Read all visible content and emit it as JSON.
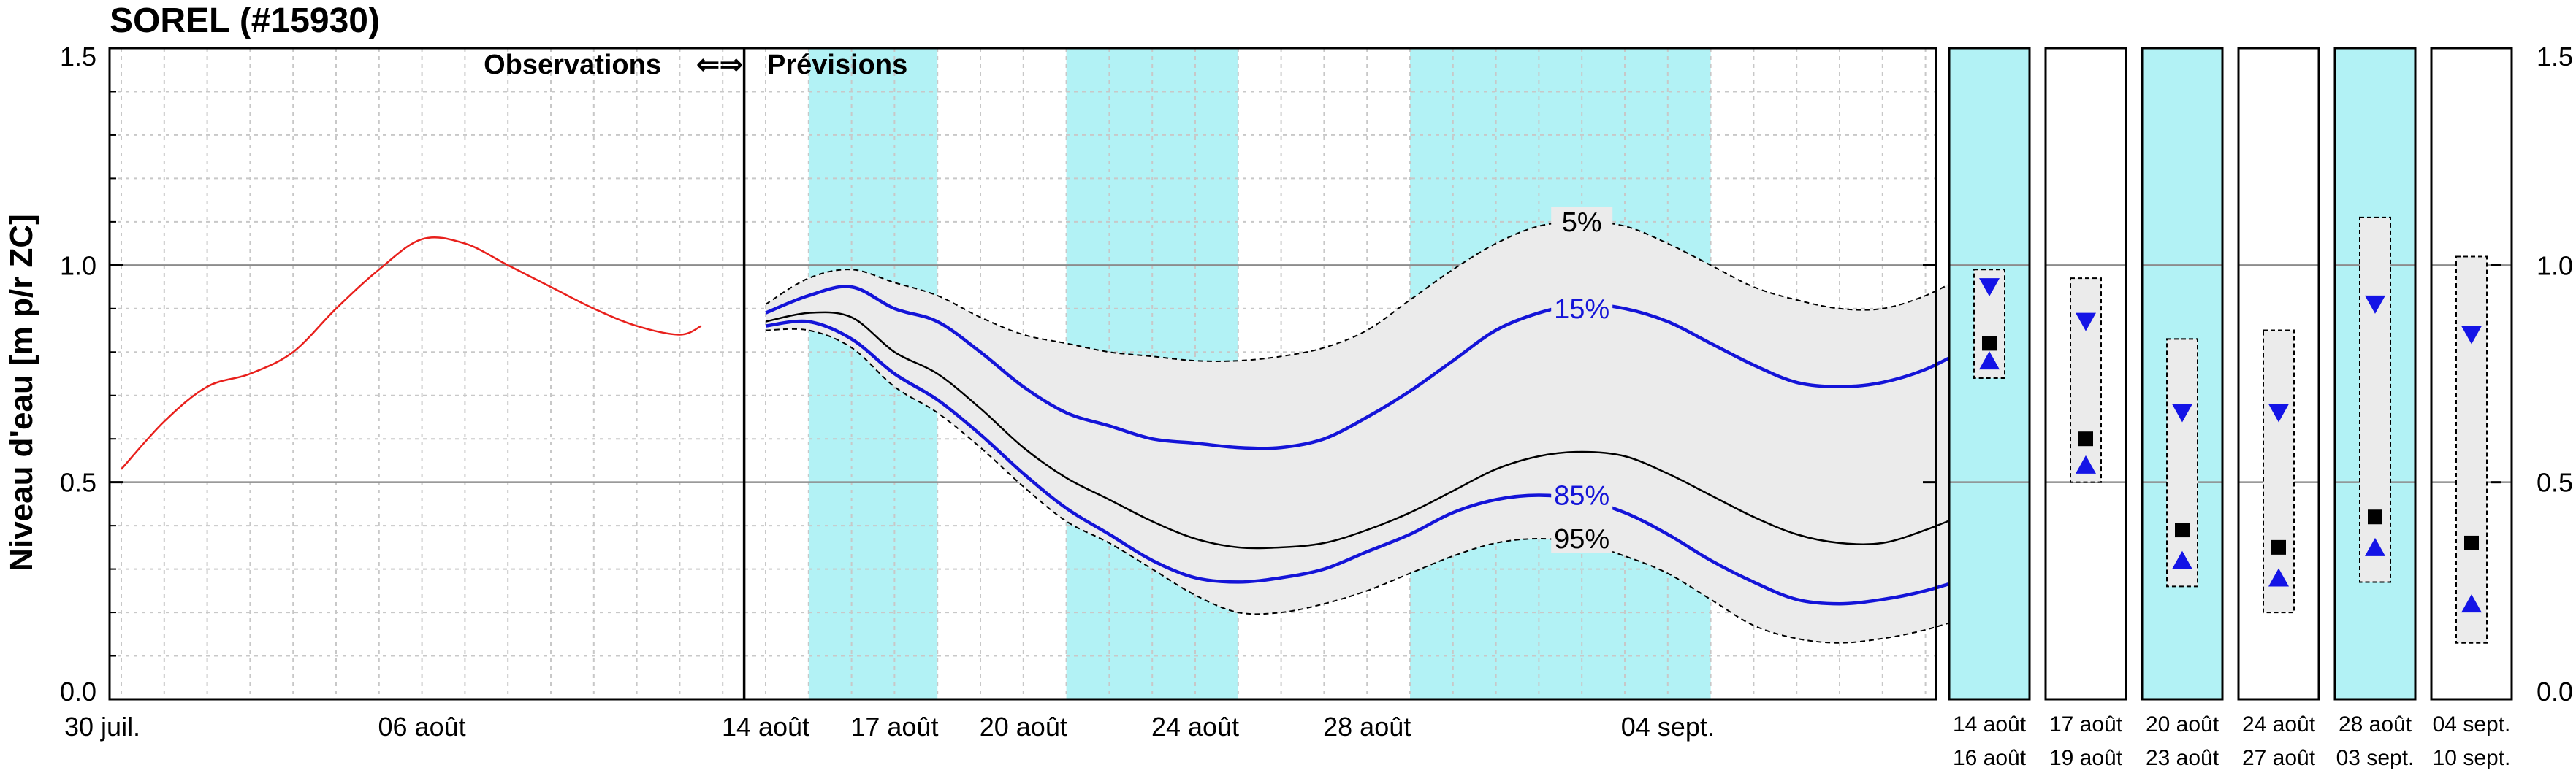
{
  "chart_data": {
    "type": "line",
    "title": "SOREL (#15930)",
    "ylabel": "Niveau d'eau [m p/r ZC]",
    "ylim": [
      0,
      1.5
    ],
    "yticks": [
      "0.0",
      "0.5",
      "1.0",
      "1.5"
    ],
    "grid": true,
    "header_left": "Observations",
    "header_arrows": "⇐⇒",
    "header_right": "Prévisions",
    "colors": {
      "observations": "#e8201c",
      "percentile_15_85": "#1414d8",
      "median": "#000000",
      "envelope_fill": "#ebebeb",
      "shade": "#b2f2f5",
      "marker_up_down": "#1414e6",
      "marker_square": "#000000"
    },
    "x_labels": [
      {
        "day": 0,
        "label": "30 juil."
      },
      {
        "day": 7,
        "label": "06 août"
      },
      {
        "day": 15,
        "label": "14 août"
      },
      {
        "day": 18,
        "label": "17 août"
      },
      {
        "day": 21,
        "label": "20 août"
      },
      {
        "day": 25,
        "label": "24 août"
      },
      {
        "day": 29,
        "label": "28 août"
      },
      {
        "day": 36,
        "label": "04 sept."
      }
    ],
    "shaded_periods_days": [
      [
        16,
        19
      ],
      [
        22,
        26
      ],
      [
        30,
        37
      ]
    ],
    "observations": {
      "x": [
        0,
        1,
        2,
        3,
        4,
        5,
        6,
        7,
        8,
        9,
        10,
        11,
        12,
        13,
        13.5
      ],
      "y": [
        0.53,
        0.64,
        0.72,
        0.75,
        0.8,
        0.9,
        0.99,
        1.06,
        1.05,
        1.0,
        0.95,
        0.9,
        0.86,
        0.84,
        0.86
      ]
    },
    "forecast_series": [
      {
        "name": "5%",
        "style": "dashed",
        "x": [
          15,
          16,
          17,
          18,
          19,
          20,
          21,
          22,
          23,
          24,
          25,
          26,
          27,
          28,
          29,
          30,
          31,
          32,
          33,
          34,
          35,
          36,
          37,
          38,
          39,
          40,
          41,
          42,
          43
        ],
        "y": [
          0.91,
          0.97,
          0.99,
          0.96,
          0.93,
          0.88,
          0.84,
          0.82,
          0.8,
          0.79,
          0.78,
          0.78,
          0.79,
          0.81,
          0.85,
          0.92,
          0.99,
          1.05,
          1.09,
          1.1,
          1.09,
          1.05,
          1.0,
          0.95,
          0.92,
          0.9,
          0.9,
          0.93,
          0.98
        ]
      },
      {
        "name": "15%",
        "style": "blue",
        "x": [
          15,
          16,
          17,
          18,
          19,
          20,
          21,
          22,
          23,
          24,
          25,
          26,
          27,
          28,
          29,
          30,
          31,
          32,
          33,
          34,
          35,
          36,
          37,
          38,
          39,
          40,
          41,
          42,
          43
        ],
        "y": [
          0.89,
          0.93,
          0.95,
          0.9,
          0.87,
          0.8,
          0.72,
          0.66,
          0.63,
          0.6,
          0.59,
          0.58,
          0.58,
          0.6,
          0.65,
          0.71,
          0.78,
          0.85,
          0.89,
          0.91,
          0.9,
          0.87,
          0.82,
          0.77,
          0.73,
          0.72,
          0.73,
          0.76,
          0.81
        ]
      },
      {
        "name": "median",
        "style": "black",
        "x": [
          15,
          16,
          17,
          18,
          19,
          20,
          21,
          22,
          23,
          24,
          25,
          26,
          27,
          28,
          29,
          30,
          31,
          32,
          33,
          34,
          35,
          36,
          37,
          38,
          39,
          40,
          41,
          42,
          43
        ],
        "y": [
          0.87,
          0.89,
          0.88,
          0.8,
          0.75,
          0.67,
          0.58,
          0.51,
          0.46,
          0.41,
          0.37,
          0.35,
          0.35,
          0.36,
          0.39,
          0.43,
          0.48,
          0.53,
          0.56,
          0.57,
          0.56,
          0.52,
          0.47,
          0.42,
          0.38,
          0.36,
          0.36,
          0.39,
          0.43
        ]
      },
      {
        "name": "85%",
        "style": "blue",
        "x": [
          15,
          16,
          17,
          18,
          19,
          20,
          21,
          22,
          23,
          24,
          25,
          26,
          27,
          28,
          29,
          30,
          31,
          32,
          33,
          34,
          35,
          36,
          37,
          38,
          39,
          40,
          41,
          42,
          43
        ],
        "y": [
          0.86,
          0.87,
          0.83,
          0.75,
          0.69,
          0.61,
          0.52,
          0.44,
          0.38,
          0.32,
          0.28,
          0.27,
          0.28,
          0.3,
          0.34,
          0.38,
          0.43,
          0.46,
          0.47,
          0.46,
          0.43,
          0.38,
          0.32,
          0.27,
          0.23,
          0.22,
          0.23,
          0.25,
          0.28
        ]
      },
      {
        "name": "95%",
        "style": "dashed",
        "x": [
          15,
          16,
          17,
          18,
          19,
          20,
          21,
          22,
          23,
          24,
          25,
          26,
          27,
          28,
          29,
          30,
          31,
          32,
          33,
          34,
          35,
          36,
          37,
          38,
          39,
          40,
          41,
          42,
          43
        ],
        "y": [
          0.85,
          0.85,
          0.81,
          0.72,
          0.66,
          0.58,
          0.49,
          0.41,
          0.36,
          0.3,
          0.24,
          0.2,
          0.2,
          0.22,
          0.25,
          0.29,
          0.33,
          0.36,
          0.37,
          0.36,
          0.33,
          0.29,
          0.23,
          0.17,
          0.14,
          0.13,
          0.14,
          0.16,
          0.19
        ]
      }
    ],
    "percentile_labels": [
      {
        "text": "5%",
        "day": 34,
        "y": 1.1
      },
      {
        "text": "15%",
        "day": 34,
        "y": 0.9
      },
      {
        "text": "85%",
        "day": 34,
        "y": 0.47
      },
      {
        "text": "95%",
        "day": 34,
        "y": 0.37
      }
    ],
    "periods": [
      {
        "label_top": "14 août",
        "label_bottom": "16 août",
        "shaded": true,
        "box": [
          0.74,
          0.99
        ],
        "up": 0.78,
        "down": 0.95,
        "square": 0.82
      },
      {
        "label_top": "17 août",
        "label_bottom": "19 août",
        "shaded": false,
        "box": [
          0.5,
          0.97
        ],
        "up": 0.54,
        "down": 0.87,
        "square": 0.6
      },
      {
        "label_top": "20 août",
        "label_bottom": "23 août",
        "shaded": true,
        "box": [
          0.26,
          0.83
        ],
        "up": 0.32,
        "down": 0.66,
        "square": 0.39
      },
      {
        "label_top": "24 août",
        "label_bottom": "27 août",
        "shaded": false,
        "box": [
          0.2,
          0.85
        ],
        "up": 0.28,
        "down": 0.66,
        "square": 0.35
      },
      {
        "label_top": "28 août",
        "label_bottom": "03 sept.",
        "shaded": true,
        "box": [
          0.27,
          1.11
        ],
        "up": 0.35,
        "down": 0.91,
        "square": 0.42
      },
      {
        "label_top": "04 sept.",
        "label_bottom": "10 sept.",
        "shaded": false,
        "box": [
          0.13,
          1.02
        ],
        "up": 0.22,
        "down": 0.84,
        "square": 0.36
      }
    ]
  }
}
